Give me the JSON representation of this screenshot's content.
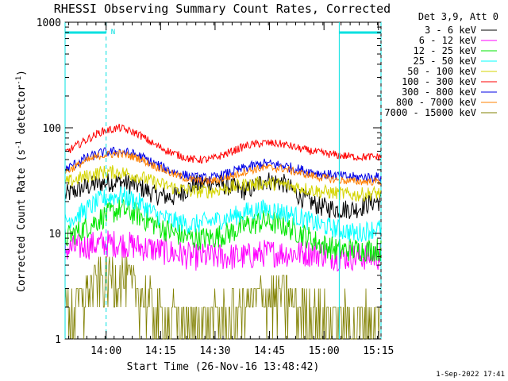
{
  "chart_data": {
    "type": "line",
    "title": "RHESSI Observing Summary Count Rates, Corrected",
    "xlabel": "Start Time (26-Nov-16 13:48:42)",
    "ylabel": "Corrected Count Rate (s-1 detector-1)",
    "ylabel_parts": {
      "a": "Corrected Count Rate (s",
      "sup1": "-1",
      "b": " detector",
      "sup2": "-1",
      "c": ")"
    },
    "yscale": "log",
    "ylim": [
      1,
      1000
    ],
    "xlim_minutes": [
      0,
      87
    ],
    "x_ticks": [
      {
        "minute": 11.3,
        "label": "14:00"
      },
      {
        "minute": 26.3,
        "label": "14:15"
      },
      {
        "minute": 41.3,
        "label": "14:30"
      },
      {
        "minute": 56.3,
        "label": "14:45"
      },
      {
        "minute": 71.3,
        "label": "15:00"
      },
      {
        "minute": 86.3,
        "label": "15:15"
      }
    ],
    "y_ticks": [
      {
        "value": 1,
        "label": "1"
      },
      {
        "value": 10,
        "label": "10"
      },
      {
        "value": 100,
        "label": "100"
      },
      {
        "value": 1000,
        "label": "1000"
      }
    ],
    "legend_title": "Det 3,9, Att 0",
    "legend_placement": "top-right outside plot",
    "series": [
      {
        "name": "3 - 6 keV",
        "color": "#000000",
        "x": [
          0,
          5,
          10,
          15,
          20,
          25,
          30,
          35,
          40,
          45,
          50,
          55,
          60,
          65,
          70,
          75,
          80,
          85
        ],
        "values": [
          23,
          27,
          30,
          31,
          28,
          23,
          22,
          28,
          31,
          28,
          25,
          32,
          30,
          22,
          18,
          17,
          17,
          20
        ]
      },
      {
        "name": "6 - 12 keV",
        "color": "#ff00ff",
        "x": [
          0,
          5,
          10,
          15,
          20,
          25,
          30,
          35,
          40,
          45,
          50,
          55,
          60,
          65,
          70,
          75,
          80,
          85
        ],
        "values": [
          7,
          7.5,
          8,
          8,
          7.5,
          7,
          6.5,
          6,
          6,
          6,
          6,
          6.5,
          6.5,
          6.5,
          6.5,
          6,
          6,
          6
        ]
      },
      {
        "name": "12 - 25 keV",
        "color": "#00e600",
        "x": [
          0,
          5,
          10,
          15,
          20,
          25,
          30,
          35,
          40,
          45,
          50,
          55,
          60,
          65,
          70,
          75,
          80,
          85
        ],
        "values": [
          9,
          11,
          14,
          17,
          15,
          12,
          10,
          9,
          9,
          10,
          12,
          13,
          12,
          10,
          8,
          7,
          7,
          7
        ]
      },
      {
        "name": "25 - 50 keV",
        "color": "#00ffff",
        "x": [
          0,
          5,
          10,
          15,
          20,
          25,
          30,
          35,
          40,
          45,
          50,
          55,
          60,
          65,
          70,
          75,
          80,
          85
        ],
        "values": [
          13,
          16,
          21,
          23,
          20,
          15,
          13,
          12,
          13,
          14,
          16,
          17,
          16,
          14,
          12,
          11,
          10,
          11
        ]
      },
      {
        "name": "50 - 100 keV",
        "color": "#d4d400",
        "x": [
          0,
          5,
          10,
          15,
          20,
          25,
          30,
          35,
          40,
          45,
          50,
          55,
          60,
          65,
          70,
          75,
          80,
          85
        ],
        "values": [
          30,
          34,
          38,
          38,
          35,
          30,
          27,
          25,
          25,
          27,
          29,
          30,
          29,
          27,
          25,
          24,
          23,
          24
        ]
      },
      {
        "name": "100 - 300 keV",
        "color": "#ff0000",
        "x": [
          0,
          5,
          10,
          15,
          20,
          25,
          30,
          35,
          40,
          45,
          50,
          55,
          60,
          65,
          70,
          75,
          80,
          85
        ],
        "values": [
          58,
          74,
          92,
          100,
          88,
          68,
          57,
          50,
          50,
          58,
          68,
          72,
          70,
          63,
          58,
          55,
          53,
          53
        ]
      },
      {
        "name": "300 - 800 keV",
        "color": "#0000e6",
        "x": [
          0,
          5,
          10,
          15,
          20,
          25,
          30,
          35,
          40,
          45,
          50,
          55,
          60,
          65,
          70,
          75,
          80,
          85
        ],
        "values": [
          40,
          50,
          58,
          60,
          55,
          45,
          38,
          34,
          33,
          37,
          42,
          46,
          44,
          40,
          37,
          35,
          34,
          34
        ]
      },
      {
        "name": "800 - 7000 keV",
        "color": "#ff8000",
        "x": [
          0,
          5,
          10,
          15,
          20,
          25,
          30,
          35,
          40,
          45,
          50,
          55,
          60,
          65,
          70,
          75,
          80,
          85
        ],
        "values": [
          38,
          47,
          55,
          57,
          52,
          43,
          36,
          32,
          31,
          34,
          39,
          42,
          41,
          37,
          34,
          32,
          31,
          31
        ]
      },
      {
        "name": "7000 - 15000 keV",
        "color": "#808000",
        "x": [
          0,
          5,
          10,
          15,
          20,
          25,
          30,
          35,
          40,
          45,
          50,
          55,
          60,
          65,
          70,
          75,
          80,
          85
        ],
        "values": [
          1.7,
          2.5,
          4,
          4,
          3,
          2,
          1.6,
          1.5,
          1.6,
          1.8,
          2.2,
          2.6,
          2.6,
          2,
          1.7,
          1.6,
          1.6,
          1.7
        ]
      }
    ],
    "annotations": {
      "top_marker": "N",
      "flag_bars_minutes": [
        [
          0,
          11.3
        ],
        [
          75.5,
          87
        ]
      ],
      "dashed_lines_minutes": [
        11.3,
        87
      ],
      "solid_lines_minutes": [
        0,
        75.5
      ]
    },
    "grid": false,
    "marker_color": "#00e0e0"
  },
  "footer_timestamp": "1-Sep-2022 17:41"
}
